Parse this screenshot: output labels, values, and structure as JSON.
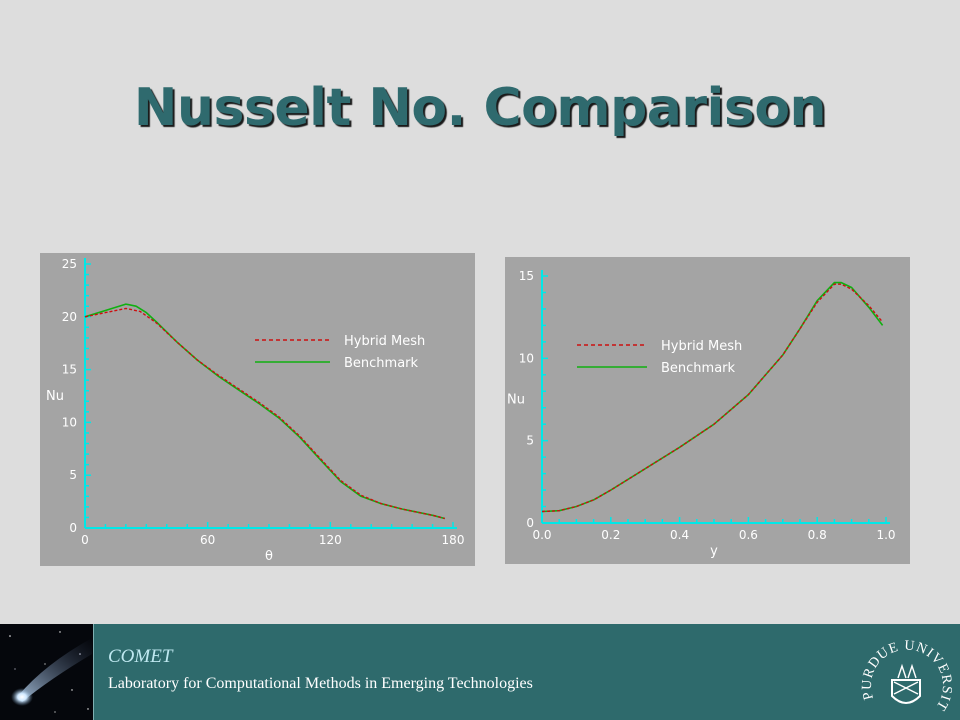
{
  "slide": {
    "title": "Nusselt No. Comparison"
  },
  "footer": {
    "brand": "COMET",
    "lab": "Laboratory for Computational Methods in Emerging Technologies",
    "seal_text": "PURDUE UNIVERSITY"
  },
  "colors": {
    "title": "#2f6a6e",
    "chart_background": "#a4a4a4",
    "axis": "#00e8e8",
    "hybrid": "#cc1010",
    "benchmark": "#10b010",
    "footer": "#2e6a6c"
  },
  "chart_data": [
    {
      "type": "line",
      "xlabel": "θ",
      "ylabel": "Nu",
      "xlim": [
        0,
        180
      ],
      "ylim": [
        0,
        25
      ],
      "x_ticks": [
        "0",
        "60",
        "120",
        "180"
      ],
      "y_ticks": [
        "0",
        "5",
        "10",
        "15",
        "20",
        "25"
      ],
      "legend_position": "top-right",
      "series": [
        {
          "name": "Hybrid Mesh",
          "style": "dashed",
          "x": [
            0,
            10,
            20,
            27,
            35,
            45,
            55,
            65,
            75,
            85,
            95,
            105,
            115,
            125,
            135,
            145,
            155,
            165,
            170,
            176
          ],
          "y": [
            20.0,
            20.4,
            20.8,
            20.5,
            19.4,
            17.6,
            15.9,
            14.5,
            13.2,
            11.9,
            10.5,
            8.7,
            6.6,
            4.5,
            3.1,
            2.3,
            1.8,
            1.4,
            1.2,
            0.9
          ]
        },
        {
          "name": "Benchmark",
          "style": "solid",
          "x": [
            0,
            10,
            20,
            25,
            30,
            35,
            45,
            55,
            65,
            75,
            85,
            95,
            105,
            115,
            125,
            135,
            145,
            155,
            165,
            170,
            176
          ],
          "y": [
            20.0,
            20.6,
            21.2,
            21.0,
            20.4,
            19.5,
            17.6,
            15.9,
            14.4,
            13.1,
            11.8,
            10.4,
            8.6,
            6.5,
            4.4,
            3.0,
            2.3,
            1.8,
            1.4,
            1.2,
            0.9
          ]
        }
      ]
    },
    {
      "type": "line",
      "xlabel": "y",
      "ylabel": "Nu",
      "xlim": [
        0,
        1
      ],
      "ylim": [
        0,
        15
      ],
      "x_ticks": [
        "0.0",
        "0.2",
        "0.4",
        "0.6",
        "0.8",
        "1.0"
      ],
      "y_ticks": [
        "0",
        "5",
        "10",
        "15"
      ],
      "legend_position": "top-left",
      "series": [
        {
          "name": "Hybrid Mesh",
          "style": "dashed",
          "x": [
            0.0,
            0.05,
            0.1,
            0.15,
            0.2,
            0.3,
            0.4,
            0.5,
            0.6,
            0.7,
            0.75,
            0.8,
            0.85,
            0.87,
            0.9,
            0.95,
            0.99
          ],
          "y": [
            0.7,
            0.75,
            1.0,
            1.4,
            2.0,
            3.3,
            4.6,
            6.0,
            7.8,
            10.2,
            11.8,
            13.4,
            14.5,
            14.5,
            14.2,
            13.2,
            12.2
          ]
        },
        {
          "name": "Benchmark",
          "style": "solid",
          "x": [
            0.0,
            0.05,
            0.1,
            0.15,
            0.2,
            0.3,
            0.4,
            0.5,
            0.6,
            0.7,
            0.75,
            0.8,
            0.85,
            0.87,
            0.9,
            0.95,
            0.99
          ],
          "y": [
            0.7,
            0.75,
            1.0,
            1.4,
            2.0,
            3.3,
            4.6,
            6.0,
            7.8,
            10.2,
            11.8,
            13.5,
            14.6,
            14.6,
            14.3,
            13.1,
            12.0
          ]
        }
      ]
    }
  ]
}
